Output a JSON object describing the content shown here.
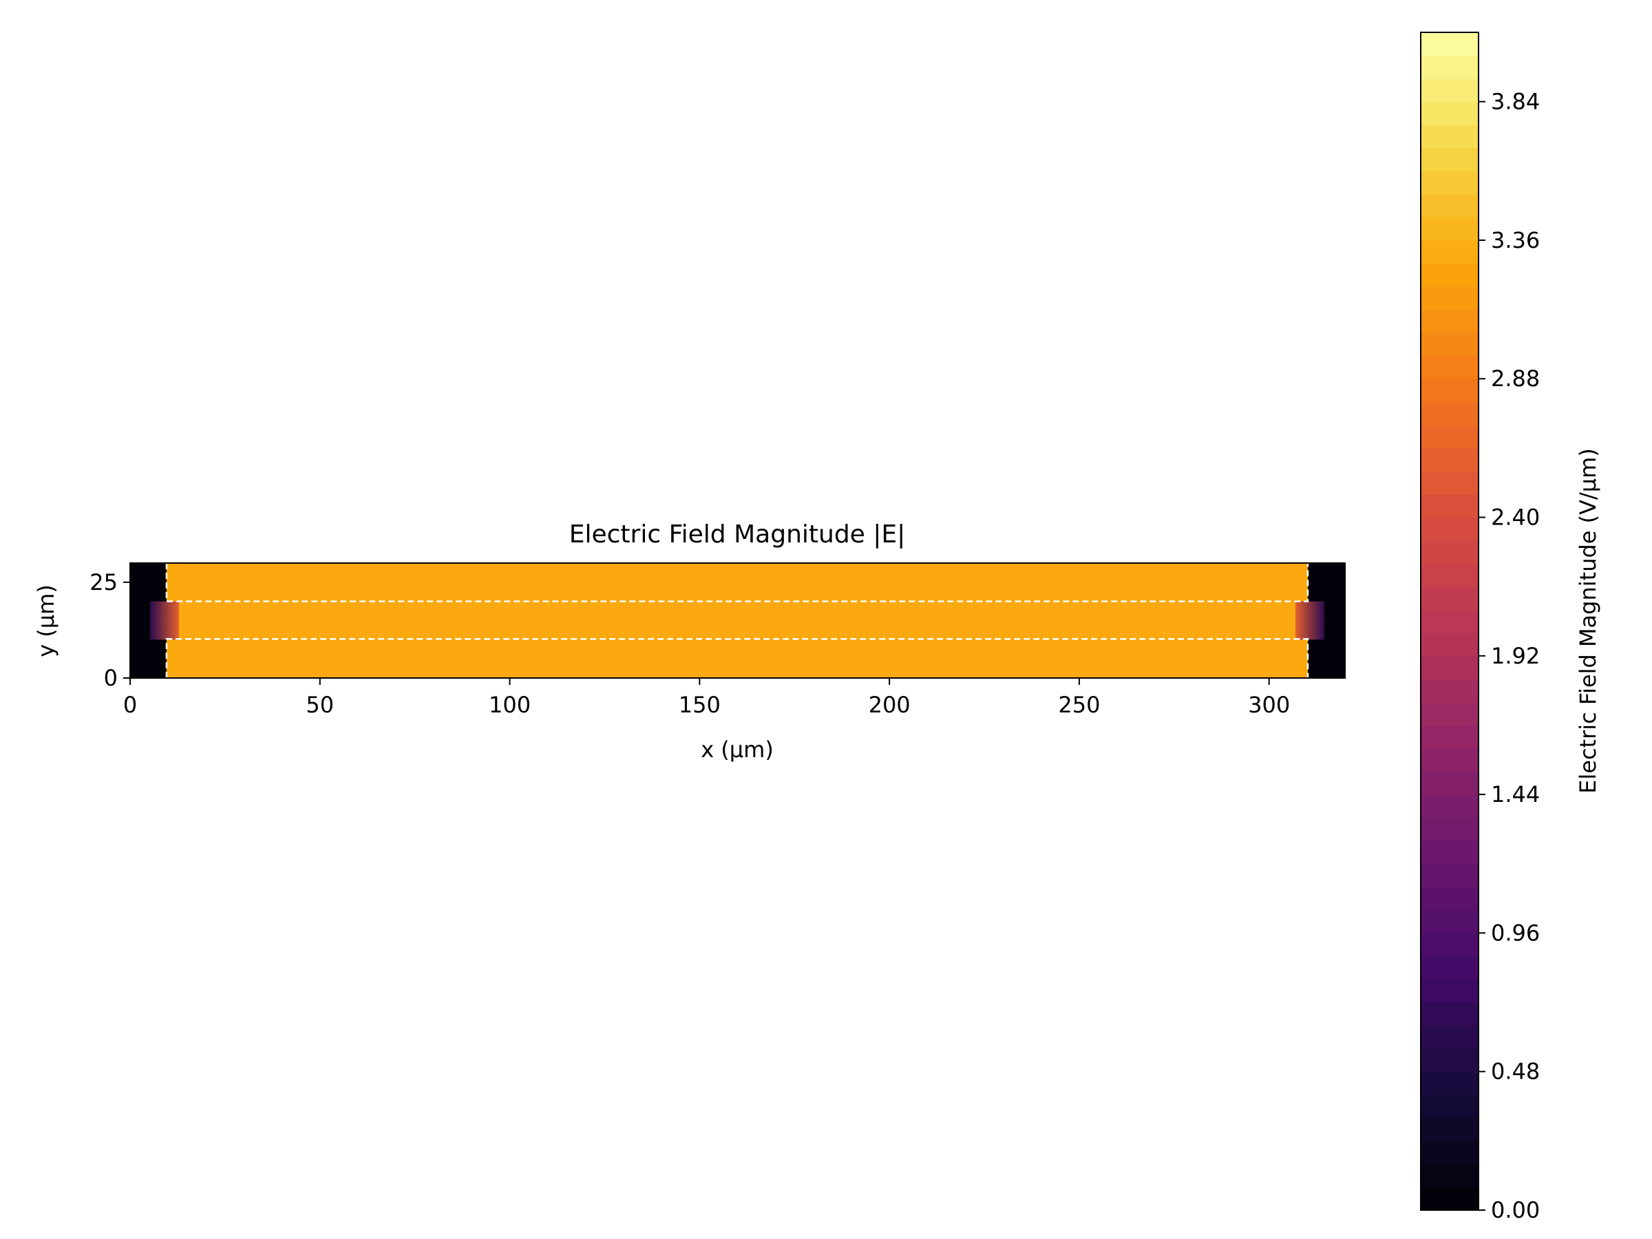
{
  "chart_data": {
    "type": "heatmap",
    "title": "Electric Field Magnitude |E|",
    "xlabel": "x (µm)",
    "ylabel": "y (µm)",
    "xlim": [
      0,
      320
    ],
    "ylim": [
      0,
      30
    ],
    "x_ticks": [
      0,
      50,
      100,
      150,
      200,
      250,
      300
    ],
    "y_ticks": [
      0,
      25
    ],
    "grid": false,
    "colormap": "inferno",
    "colorbar": {
      "label": "Electric Field Magnitude (V/µm)",
      "range": [
        0,
        4.08
      ],
      "ticks": [
        "0.00",
        "0.48",
        "0.96",
        "1.44",
        "1.92",
        "2.40",
        "2.88",
        "3.36",
        "3.84"
      ],
      "levels": 51
    },
    "field": {
      "bulk_value": 3.3,
      "background_value": 0.0,
      "field_region_x": [
        9.6,
        310.2
      ],
      "hot_gap_y": [
        10,
        20
      ],
      "edge_peak_value": 2.6
    },
    "boundaries": [
      {
        "style": "dashed",
        "color": "#ffffff",
        "points": [
          [
            9.6,
            30
          ],
          [
            9.6,
            20
          ],
          [
            310.2,
            20
          ],
          [
            310.2,
            30
          ]
        ]
      },
      {
        "style": "dashed",
        "color": "#ffffff",
        "points": [
          [
            9.6,
            0
          ],
          [
            9.6,
            10.2
          ],
          [
            310.2,
            10.2
          ],
          [
            310.2,
            0
          ]
        ]
      }
    ]
  }
}
